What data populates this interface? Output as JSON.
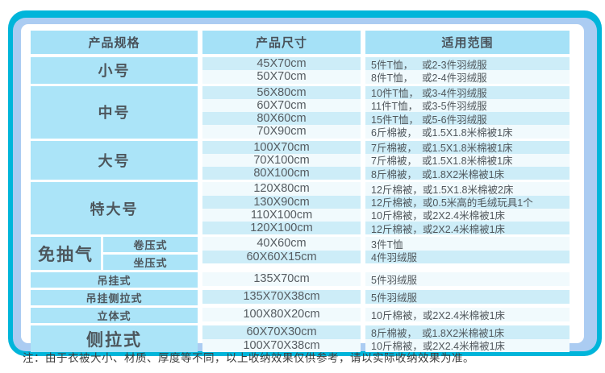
{
  "colors": {
    "frame_teal": "#00b5da",
    "frame_blue": "#abccf2",
    "header_cell": "#a5e1f7",
    "spec_cell": "#abe4f8",
    "row_blue": "#cdedf8",
    "row_light": "#f1fafd"
  },
  "note": "注：由于衣被大小、材质、厚度等不同，以上收纳效果仅供参考，请以实际收纳效果为准。",
  "table": {
    "headers": [
      "产品规格",
      "产品尺寸",
      "适用范围"
    ],
    "groups": [
      {
        "label": "小号",
        "rows": [
          {
            "size": "45X70cm",
            "use_a": "5件T恤，",
            "use_b": "或2-3件羽绒服"
          },
          {
            "size": "50X70cm",
            "use_a": "8件T恤，",
            "use_b": "或2-4件羽绒服"
          }
        ]
      },
      {
        "label": "中号",
        "rows": [
          {
            "size": "56X80cm",
            "use_a": "10件T恤，",
            "use_b": "或3-4件羽绒服"
          },
          {
            "size": "60X70cm",
            "use_a": "11件T恤，",
            "use_b": "或3-5件羽绒服"
          },
          {
            "size": "80X60cm",
            "use_a": "15件T恤，",
            "use_b": "或5-6件羽绒服"
          },
          {
            "size": "70X90cm",
            "use_a": "6斤棉被，",
            "use_b": "或1.5X1.8米棉被1床"
          }
        ]
      },
      {
        "label": "大号",
        "rows": [
          {
            "size": "100X70cm",
            "use_a": "7斤棉被，",
            "use_b": "或1.5X1.8米棉被1床"
          },
          {
            "size": "70X100cm",
            "use_a": "7斤棉被，",
            "use_b": "或1.5X1.8米棉被1床"
          },
          {
            "size": "80X100cm",
            "use_a": "8斤棉被，",
            "use_b": "或1.8X2米棉被1床"
          }
        ]
      },
      {
        "label": "特大号",
        "rows": [
          {
            "size": "120X80cm",
            "use_a": "12斤棉被，",
            "use_b": "或1.5X1.8米棉被2床"
          },
          {
            "size": "130X90cm",
            "use_a": "12斤棉被，",
            "use_b": "或0.5米高的毛绒玩具1个"
          },
          {
            "size": "110X100cm",
            "use_a": "10斤棉被，",
            "use_b": "或2X2.4米棉被1床"
          },
          {
            "size": "120X100cm",
            "use_a": "12斤棉被，",
            "use_b": "或2X2.4米棉被1床"
          }
        ]
      },
      {
        "label": "免抽气",
        "subs": [
          "卷压式",
          "坐压式"
        ],
        "rows": [
          {
            "size": "40X60cm",
            "use_a": "3件T恤",
            "use_b": ""
          },
          {
            "size": "60X60X15cm",
            "use_a": "4件羽绒服",
            "use_b": ""
          }
        ]
      },
      {
        "label": "吊挂式",
        "rows": [
          {
            "size": "135X70cm",
            "use_a": "5件羽绒服",
            "use_b": ""
          }
        ]
      },
      {
        "label": "吊挂侧拉式",
        "rows": [
          {
            "size": "135X70X38cm",
            "use_a": "5件羽绒服",
            "use_b": ""
          }
        ]
      },
      {
        "label": "立体式",
        "rows": [
          {
            "size": "100X80X20cm",
            "use_a": "10斤棉被，",
            "use_b": "或2X2.4米棉被1床"
          }
        ]
      },
      {
        "label": "侧拉式",
        "rows": [
          {
            "size": "60X70X30cm",
            "use_a": "8斤棉被，",
            "use_b": "或1.8X2米棉被1床"
          },
          {
            "size": "100X70X38cm",
            "use_a": "10斤棉被，",
            "use_b": "或2X2.4米棉被1床"
          }
        ]
      }
    ]
  }
}
